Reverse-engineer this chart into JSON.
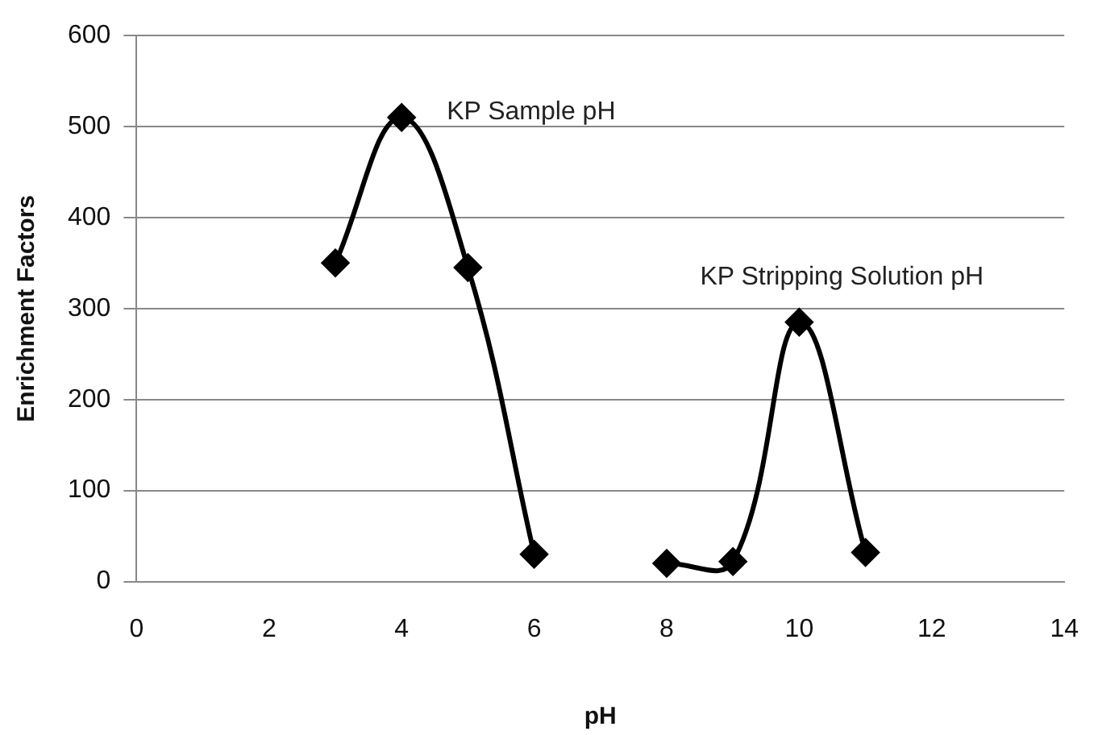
{
  "chart_data": {
    "type": "line",
    "xlabel": "pH",
    "ylabel": "Enrichment Factors",
    "series": [
      {
        "color": "#000000",
        "x": [
          3,
          4,
          5,
          6
        ],
        "values": [
          350,
          510,
          345,
          30
        ]
      },
      {
        "color": "#000000",
        "x": [
          8,
          9,
          10,
          11
        ],
        "values": [
          20,
          22,
          285,
          32
        ]
      }
    ],
    "xlim": [
      0,
      14
    ],
    "xticks": [
      0,
      2,
      4,
      6,
      8,
      10,
      12,
      14
    ],
    "ylim": [
      0,
      600
    ],
    "yticks": [
      0,
      100,
      200,
      300,
      400,
      500,
      600
    ],
    "grid": "y",
    "legend": false,
    "marker": "diamond",
    "line_style": "solid",
    "annotations": [
      "KP Sample pH",
      "KP Stripping Solution pH"
    ]
  }
}
